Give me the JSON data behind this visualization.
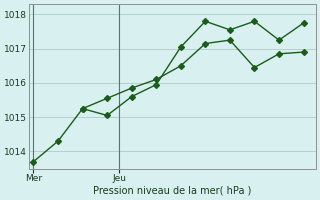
{
  "line1_x": [
    0,
    1,
    2,
    3,
    4,
    5,
    6,
    7,
    8,
    9,
    10,
    11
  ],
  "line1_y": [
    1013.7,
    1014.3,
    1015.25,
    1015.05,
    1015.6,
    1015.95,
    1017.05,
    1017.8,
    1017.55,
    1017.8,
    1017.25,
    1017.75
  ],
  "line2_x": [
    2,
    3,
    4,
    5,
    6,
    7,
    8,
    9,
    10,
    11
  ],
  "line2_y": [
    1015.25,
    1015.55,
    1015.85,
    1016.1,
    1016.5,
    1017.15,
    1017.25,
    1016.45,
    1016.85,
    1016.9
  ],
  "line_color": "#1a5c1a",
  "bg_color": "#d8f0f0",
  "grid_color": "#b8cece",
  "xlabel": "Pression niveau de la mer( hPa )",
  "ylim": [
    1013.5,
    1018.3
  ],
  "yticks": [
    1014,
    1015,
    1016,
    1017,
    1018
  ],
  "mer_x": 0,
  "jeu_x": 3.5,
  "xlim": [
    -0.2,
    11.5
  ],
  "marker_size": 3,
  "linewidth": 1.0
}
